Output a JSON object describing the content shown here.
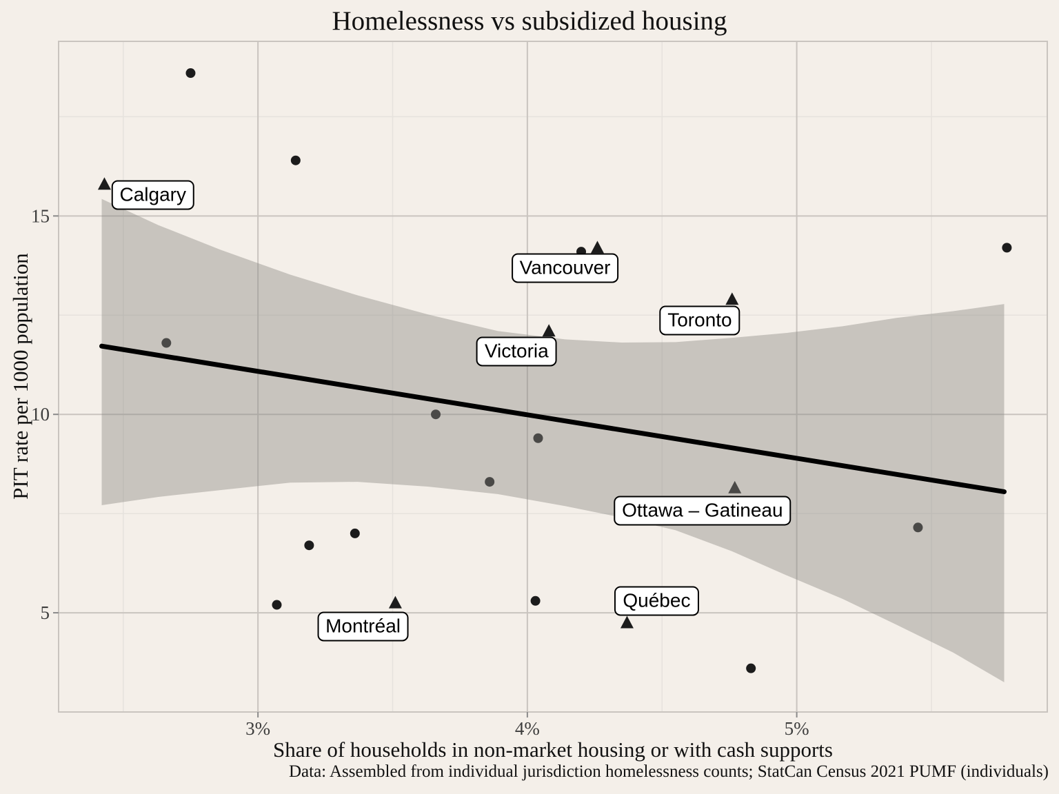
{
  "chart_data": {
    "type": "scatter",
    "title": "Homelessness vs subsidized housing",
    "xlabel": "Share of households in non-market housing or with cash supports",
    "ylabel": "PIT rate per 1000 population",
    "caption": "Data: Assembled from individual jurisdiction homelessness counts; StatCan Census 2021 PUMF (individuals)",
    "xlim": [
      2.26,
      5.93
    ],
    "ylim": [
      2.5,
      19.4
    ],
    "grid": "major+minor",
    "legend": "none",
    "x_ticks": [
      {
        "value": 3,
        "label": "3%"
      },
      {
        "value": 4,
        "label": "4%"
      },
      {
        "value": 5,
        "label": "5%"
      }
    ],
    "x_minor_ticks": [
      2.5,
      3.5,
      4.5,
      5.5
    ],
    "y_ticks": [
      {
        "value": 5,
        "label": "5"
      },
      {
        "value": 10,
        "label": "10"
      },
      {
        "value": 15,
        "label": "15"
      }
    ],
    "y_minor_ticks": [
      7.5,
      12.5,
      17.5
    ],
    "series": [
      {
        "name": "circle-markers",
        "marker": "circle",
        "points": [
          [
            2.75,
            18.6
          ],
          [
            3.14,
            16.4
          ],
          [
            2.66,
            11.8
          ],
          [
            4.2,
            14.1
          ],
          [
            3.66,
            10.0
          ],
          [
            4.04,
            9.4
          ],
          [
            3.86,
            8.3
          ],
          [
            5.78,
            14.2
          ],
          [
            5.45,
            7.15
          ],
          [
            3.36,
            7.0
          ],
          [
            3.19,
            6.7
          ],
          [
            3.07,
            5.2
          ],
          [
            4.03,
            5.3
          ],
          [
            4.83,
            3.6
          ]
        ]
      },
      {
        "name": "triangle-markers",
        "marker": "triangle",
        "points": [
          [
            2.43,
            15.8
          ],
          [
            4.26,
            14.2
          ],
          [
            4.76,
            12.9
          ],
          [
            4.08,
            12.1
          ],
          [
            4.77,
            8.15
          ],
          [
            3.51,
            5.25
          ],
          [
            4.37,
            4.75
          ]
        ]
      }
    ],
    "city_labels": [
      {
        "text": "Calgary",
        "x": 2.61,
        "y": 15.53
      },
      {
        "text": "Vancouver",
        "x": 4.14,
        "y": 13.68
      },
      {
        "text": "Toronto",
        "x": 4.64,
        "y": 12.37
      },
      {
        "text": "Victoria",
        "x": 3.96,
        "y": 11.58
      },
      {
        "text": "Ottawa – Gatineau",
        "x": 4.65,
        "y": 7.57
      },
      {
        "text": "Québec",
        "x": 4.48,
        "y": 5.29
      },
      {
        "text": "Montréal",
        "x": 3.39,
        "y": 4.66
      }
    ],
    "trend_line": {
      "x1": 2.42,
      "y1": 11.72,
      "x2": 5.77,
      "y2": 8.05
    },
    "confidence_band": {
      "upper": [
        [
          2.42,
          15.43
        ],
        [
          2.63,
          14.77
        ],
        [
          2.86,
          14.15
        ],
        [
          3.12,
          13.52
        ],
        [
          3.37,
          13.0
        ],
        [
          3.63,
          12.52
        ],
        [
          3.89,
          12.1
        ],
        [
          4.14,
          11.89
        ],
        [
          4.35,
          11.81
        ],
        [
          4.55,
          11.82
        ],
        [
          4.76,
          11.93
        ],
        [
          4.96,
          12.05
        ],
        [
          5.17,
          12.22
        ],
        [
          5.37,
          12.43
        ],
        [
          5.58,
          12.6
        ],
        [
          5.77,
          12.78
        ]
      ],
      "lower": [
        [
          2.42,
          7.71
        ],
        [
          2.63,
          7.92
        ],
        [
          2.86,
          8.09
        ],
        [
          3.12,
          8.28
        ],
        [
          3.37,
          8.3
        ],
        [
          3.63,
          8.18
        ],
        [
          3.89,
          7.99
        ],
        [
          4.14,
          7.69
        ],
        [
          4.35,
          7.4
        ],
        [
          4.55,
          7.08
        ],
        [
          4.76,
          6.55
        ],
        [
          4.96,
          5.95
        ],
        [
          5.17,
          5.35
        ],
        [
          5.37,
          4.7
        ],
        [
          5.58,
          4.0
        ],
        [
          5.77,
          3.25
        ]
      ]
    },
    "colors": {
      "background": "#f4efe9",
      "point": "#1c1c1c",
      "trend": "#000000",
      "band_fill": "#8b8783",
      "band_opacity": "0.42",
      "grid_major": "#c9c4bf",
      "grid_minor": "#e6e2dd",
      "panel_border": "#c9c4bf",
      "tick_mark": "#8a8a8a",
      "tick_label": "#3d3d3d",
      "text": "#111111",
      "label_box_bg": "#ffffff",
      "label_box_border": "#000000"
    }
  }
}
